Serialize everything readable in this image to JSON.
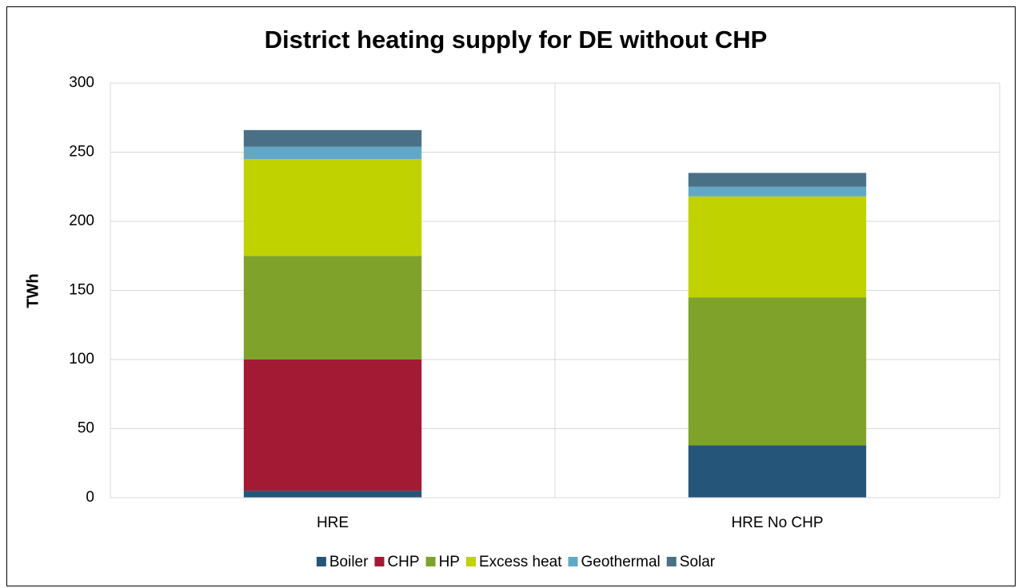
{
  "chart_data": {
    "type": "stacked_bar",
    "title": "District heating supply for DE without CHP",
    "y_label": "TWh",
    "categories": [
      "HRE",
      "HRE No CHP"
    ],
    "series": [
      {
        "name": "Boiler",
        "color": "#26557a",
        "values": [
          5,
          38
        ]
      },
      {
        "name": "CHP",
        "color": "#a31a35",
        "values": [
          95,
          0
        ]
      },
      {
        "name": "HP",
        "color": "#7fa22b",
        "values": [
          75,
          107
        ]
      },
      {
        "name": "Excess heat",
        "color": "#c0d200",
        "values": [
          70,
          73
        ]
      },
      {
        "name": "Geothermal",
        "color": "#62a8c6",
        "values": [
          9,
          7
        ]
      },
      {
        "name": "Solar",
        "color": "#4a7088",
        "values": [
          12,
          10
        ]
      }
    ],
    "ylim": [
      0,
      300
    ],
    "yticks": [
      0,
      50,
      100,
      150,
      200,
      250,
      300
    ],
    "grid": true,
    "legend": "bottom"
  }
}
